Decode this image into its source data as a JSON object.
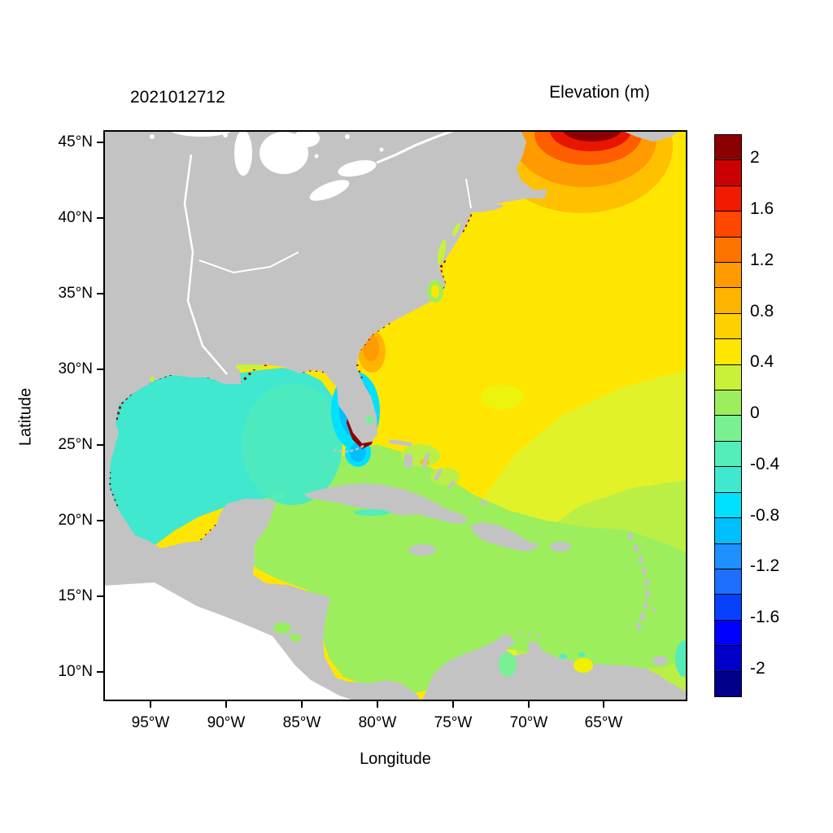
{
  "figure": {
    "run_id": "2021012712",
    "colorbar_title": "Elevation (m)",
    "xlabel": "Longitude",
    "ylabel": "Latitude"
  },
  "axes": {
    "x_ticks": [
      "95°W",
      "90°W",
      "85°W",
      "80°W",
      "75°W",
      "70°W",
      "65°W"
    ],
    "y_ticks": [
      "45°N",
      "40°N",
      "35°N",
      "30°N",
      "25°N",
      "20°N",
      "15°N",
      "10°N"
    ]
  },
  "colorbar": {
    "labels_top_to_bottom": [
      "2",
      "1.6",
      "1.2",
      "0.8",
      "0.4",
      "0",
      "-0.4",
      "-0.8",
      "-1.2",
      "-1.6",
      "-2"
    ],
    "colors_bottom_to_top": [
      "#00008B",
      "#0000C8",
      "#0000FF",
      "#0741FF",
      "#1E6FFF",
      "#1E90FF",
      "#00BFFF",
      "#00E1FF",
      "#3FE8CF",
      "#52EDB9",
      "#79F193",
      "#9CEE5C",
      "#C8F13A",
      "#FFE600",
      "#FFD000",
      "#FFB400",
      "#FF9B00",
      "#FF7300",
      "#FF4700",
      "#F21A00",
      "#CC0000",
      "#8B0000"
    ]
  },
  "colors": {
    "land": "#C3C3C3",
    "outside_domain": "#FFFFFF",
    "background": "#FFFFFF"
  },
  "chart_data": {
    "type": "heatmap",
    "title": "Elevation (m)",
    "subtitle": "2021012712",
    "xlabel": "Longitude",
    "ylabel": "Latitude",
    "x_tick_labels": [
      "95°W",
      "90°W",
      "85°W",
      "80°W",
      "75°W",
      "70°W",
      "65°W"
    ],
    "y_tick_labels": [
      "45°N",
      "40°N",
      "35°N",
      "30°N",
      "25°N",
      "20°N",
      "15°N",
      "10°N"
    ],
    "xlim_deg_west": [
      98,
      60
    ],
    "ylim_deg_north": [
      8,
      46
    ],
    "grid": false,
    "legend_position": "right-colorbar",
    "colorbar": {
      "units": "m",
      "min": -2.2,
      "max": 2.2,
      "cell_step": 0.2,
      "tick_values": [
        2,
        1.6,
        1.2,
        0.8,
        0.4,
        0,
        -0.4,
        -0.8,
        -1.2,
        -1.6,
        -2
      ]
    },
    "regions": [
      {
        "name": "Open Atlantic (Gulf Stream region, east of Florida up to Nova Scotia)",
        "approx_elevation_m": 0.5
      },
      {
        "name": "Southeastern Atlantic (toward Lesser Antilles, lower right)",
        "approx_elevation_m": 0.3
      },
      {
        "name": "Caribbean Sea",
        "approx_elevation_m": 0.1
      },
      {
        "name": "Gulf of Mexico main basin",
        "approx_elevation_m": -0.5
      },
      {
        "name": "Central-eastern Gulf of Mexico",
        "approx_elevation_m": -0.3
      },
      {
        "name": "West Florida shelf patch",
        "approx_elevation_m": -0.9
      },
      {
        "name": "Gulf of Maine / Bay of Fundy hotspot",
        "approx_elevation_m": 2.2
      },
      {
        "name": "Tampa Bay / SW Florida coastal blob",
        "approx_elevation_m": 2.2
      },
      {
        "name": "Georgia / South Carolina shelf patch",
        "approx_elevation_m": 0.9
      },
      {
        "name": "Mississippi / Louisiana coastal spot",
        "approx_elevation_m": 1.0
      },
      {
        "name": "Coastal speckles (TX, LA, mid-Atlantic coasts)",
        "approx_elevation_m": 2.0
      },
      {
        "name": "Land",
        "value": "masked gray"
      },
      {
        "name": "Pacific side (outside model domain)",
        "value": "white"
      }
    ]
  }
}
